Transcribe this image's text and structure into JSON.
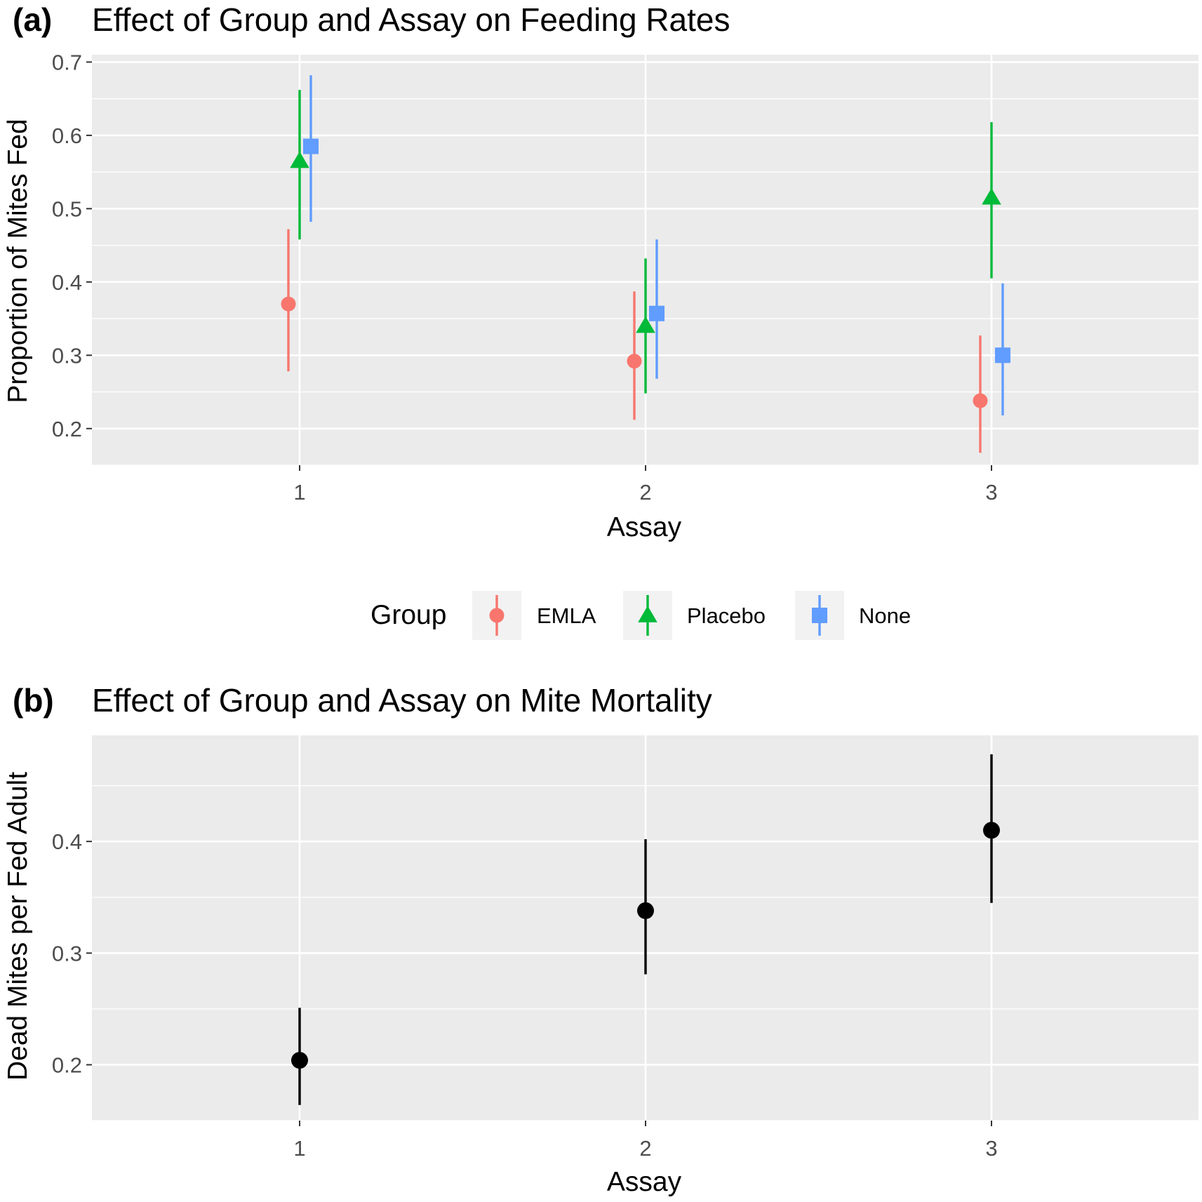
{
  "chart_data": [
    {
      "type": "scatter",
      "panel_tag": "(a)",
      "title": "Effect of Group and Assay on Feeding Rates",
      "xlabel": "Assay",
      "ylabel": "Proportion of Mites Fed",
      "categories": [
        "1",
        "2",
        "3"
      ],
      "ylim": [
        0.15,
        0.71
      ],
      "yticks": [
        0.2,
        0.3,
        0.4,
        0.5,
        0.6,
        0.7
      ],
      "ytick_labels": [
        "0.2",
        "0.3",
        "0.4",
        "0.5",
        "0.6",
        "0.7"
      ],
      "grid": true,
      "legend": {
        "title": "Group",
        "position": "bottom"
      },
      "series": [
        {
          "name": "EMLA",
          "color": "#F8766D",
          "shape": "circle",
          "values": [
            0.37,
            0.292,
            0.238
          ],
          "lower": [
            0.278,
            0.212,
            0.167
          ],
          "upper": [
            0.472,
            0.387,
            0.327
          ]
        },
        {
          "name": "Placebo",
          "color": "#00BA38",
          "shape": "triangle",
          "values": [
            0.565,
            0.34,
            0.515
          ],
          "lower": [
            0.458,
            0.248,
            0.405
          ],
          "upper": [
            0.662,
            0.432,
            0.618
          ]
        },
        {
          "name": "None",
          "color": "#619CFF",
          "shape": "square",
          "values": [
            0.585,
            0.357,
            0.3
          ],
          "lower": [
            0.482,
            0.268,
            0.218
          ],
          "upper": [
            0.682,
            0.458,
            0.398
          ]
        }
      ]
    },
    {
      "type": "scatter",
      "panel_tag": "(b)",
      "title": "Effect of Group and Assay on Mite Mortality",
      "xlabel": "Assay",
      "ylabel": "Dead Mites per Fed Adult",
      "categories": [
        "1",
        "2",
        "3"
      ],
      "ylim": [
        0.15,
        0.495
      ],
      "yticks": [
        0.2,
        0.3,
        0.4
      ],
      "ytick_labels": [
        "0.2",
        "0.3",
        "0.4"
      ],
      "grid": true,
      "series": [
        {
          "color": "#000000",
          "shape": "circle",
          "values": [
            0.204,
            0.338,
            0.41
          ],
          "lower": [
            0.164,
            0.281,
            0.345
          ],
          "upper": [
            0.251,
            0.402,
            0.478
          ]
        }
      ]
    }
  ]
}
